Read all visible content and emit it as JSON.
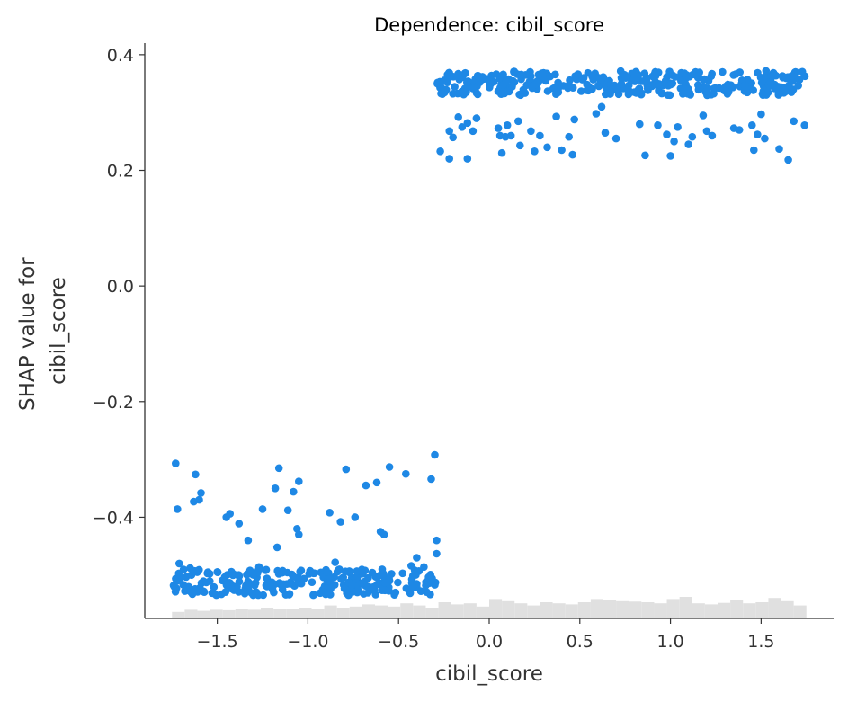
{
  "chart_data": {
    "type": "scatter",
    "title": "Dependence: cibil_score",
    "xlabel": "cibil_score",
    "ylabel_lines": [
      "SHAP value for",
      "cibil_score"
    ],
    "xlim": [
      -1.9,
      1.9
    ],
    "ylim": [
      -0.575,
      0.42
    ],
    "x_ticks": [
      -1.5,
      -1.0,
      -0.5,
      0.0,
      0.5,
      1.0,
      1.5
    ],
    "x_tick_labels": [
      "−1.5",
      "−1.0",
      "−0.5",
      "0.0",
      "0.5",
      "1.0",
      "1.5"
    ],
    "y_ticks": [
      0.4,
      0.2,
      0.0,
      -0.2,
      -0.4
    ],
    "y_tick_labels": [
      "0.4",
      "0.2",
      "0.0",
      "−0.2",
      "−0.4"
    ],
    "grid": false,
    "point_color": "#1e88e5",
    "histogram_color": "#e0e0e0",
    "low_group": {
      "x_range": [
        -1.75,
        -0.29
      ],
      "band_y": [
        -0.535,
        -0.49
      ],
      "outliers": [
        [
          -1.73,
          -0.307
        ],
        [
          -1.72,
          -0.386
        ],
        [
          -1.71,
          -0.48
        ],
        [
          -1.62,
          -0.326
        ],
        [
          -1.63,
          -0.373
        ],
        [
          -1.6,
          -0.37
        ],
        [
          -1.59,
          -0.358
        ],
        [
          -1.65,
          -0.488
        ],
        [
          -1.45,
          -0.4
        ],
        [
          -1.43,
          -0.394
        ],
        [
          -1.38,
          -0.411
        ],
        [
          -1.33,
          -0.44
        ],
        [
          -1.27,
          -0.486
        ],
        [
          -1.25,
          -0.386
        ],
        [
          -1.18,
          -0.35
        ],
        [
          -1.16,
          -0.315
        ],
        [
          -1.17,
          -0.452
        ],
        [
          -1.11,
          -0.388
        ],
        [
          -1.08,
          -0.356
        ],
        [
          -1.05,
          -0.338
        ],
        [
          -1.06,
          -0.42
        ],
        [
          -1.05,
          -0.43
        ],
        [
          -0.88,
          -0.392
        ],
        [
          -0.82,
          -0.408
        ],
        [
          -0.79,
          -0.317
        ],
        [
          -0.74,
          -0.4
        ],
        [
          -0.68,
          -0.345
        ],
        [
          -0.62,
          -0.34
        ],
        [
          -0.6,
          -0.425
        ],
        [
          -0.58,
          -0.43
        ],
        [
          -0.55,
          -0.313
        ],
        [
          -0.46,
          -0.325
        ],
        [
          -0.4,
          -0.47
        ],
        [
          -0.32,
          -0.334
        ],
        [
          -0.3,
          -0.292
        ],
        [
          -0.29,
          -0.463
        ],
        [
          -0.29,
          -0.44
        ],
        [
          -0.85,
          -0.478
        ],
        [
          -0.43,
          -0.484
        ],
        [
          -0.36,
          -0.486
        ]
      ]
    },
    "high_group": {
      "x_range": [
        -0.29,
        1.75
      ],
      "band_y": [
        0.33,
        0.372
      ],
      "outliers": [
        [
          -0.27,
          0.233
        ],
        [
          -0.22,
          0.22
        ],
        [
          -0.22,
          0.268
        ],
        [
          -0.2,
          0.257
        ],
        [
          -0.17,
          0.292
        ],
        [
          -0.15,
          0.275
        ],
        [
          -0.12,
          0.282
        ],
        [
          -0.12,
          0.22
        ],
        [
          -0.09,
          0.268
        ],
        [
          -0.07,
          0.29
        ],
        [
          0.05,
          0.273
        ],
        [
          0.06,
          0.26
        ],
        [
          0.09,
          0.258
        ],
        [
          0.1,
          0.278
        ],
        [
          0.12,
          0.26
        ],
        [
          0.07,
          0.23
        ],
        [
          0.16,
          0.285
        ],
        [
          0.17,
          0.243
        ],
        [
          0.23,
          0.268
        ],
        [
          0.25,
          0.233
        ],
        [
          0.28,
          0.26
        ],
        [
          0.32,
          0.24
        ],
        [
          0.37,
          0.293
        ],
        [
          0.4,
          0.235
        ],
        [
          0.44,
          0.258
        ],
        [
          0.46,
          0.227
        ],
        [
          0.47,
          0.288
        ],
        [
          0.59,
          0.298
        ],
        [
          0.62,
          0.31
        ],
        [
          0.64,
          0.265
        ],
        [
          0.7,
          0.255
        ],
        [
          0.83,
          0.28
        ],
        [
          0.86,
          0.226
        ],
        [
          0.93,
          0.278
        ],
        [
          0.98,
          0.262
        ],
        [
          1.0,
          0.225
        ],
        [
          1.02,
          0.25
        ],
        [
          1.04,
          0.275
        ],
        [
          1.12,
          0.258
        ],
        [
          1.18,
          0.295
        ],
        [
          1.2,
          0.268
        ],
        [
          1.23,
          0.26
        ],
        [
          1.35,
          0.273
        ],
        [
          1.38,
          0.27
        ],
        [
          1.45,
          0.278
        ],
        [
          1.48,
          0.262
        ],
        [
          1.5,
          0.297
        ],
        [
          1.52,
          0.255
        ],
        [
          1.6,
          0.237
        ],
        [
          1.65,
          0.218
        ],
        [
          1.68,
          0.285
        ],
        [
          1.74,
          0.278
        ],
        [
          1.46,
          0.235
        ],
        [
          0.38,
          0.34
        ],
        [
          1.1,
          0.245
        ]
      ]
    },
    "histogram": {
      "x_range": [
        -1.75,
        1.75
      ],
      "bin_width": 0.07,
      "heights": [
        0.3,
        0.4,
        0.35,
        0.4,
        0.38,
        0.45,
        0.4,
        0.5,
        0.45,
        0.42,
        0.5,
        0.45,
        0.6,
        0.5,
        0.55,
        0.65,
        0.6,
        0.55,
        0.7,
        0.6,
        0.5,
        0.75,
        0.65,
        0.7,
        0.55,
        0.9,
        0.8,
        0.7,
        0.6,
        0.75,
        0.7,
        0.65,
        0.75,
        0.9,
        0.85,
        0.8,
        0.78,
        0.75,
        0.7,
        0.9,
        1.0,
        0.7,
        0.65,
        0.72,
        0.85,
        0.7,
        0.75,
        0.95,
        0.8,
        0.6
      ]
    }
  }
}
